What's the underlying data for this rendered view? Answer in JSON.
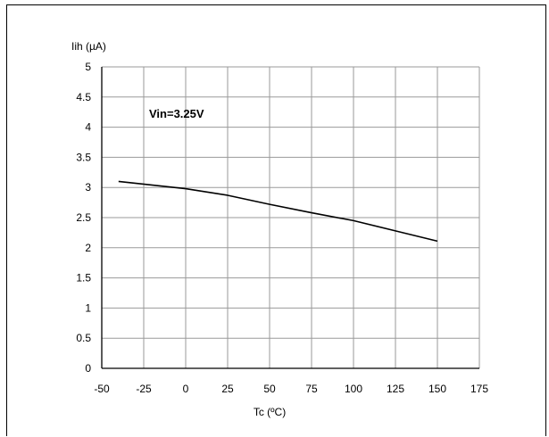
{
  "chart_data": {
    "type": "line",
    "ylabel": "Iih (µA)",
    "xlabel": "Tc (ºC)",
    "annotation": "Vin=3.25V",
    "xlim": [
      -50,
      175
    ],
    "ylim": [
      0,
      5
    ],
    "x_ticks": [
      "-50",
      "-25",
      "0",
      "25",
      "50",
      "75",
      "100",
      "125",
      "150",
      "175"
    ],
    "y_ticks": [
      "0",
      "0.5",
      "1",
      "1.5",
      "2",
      "2.5",
      "3",
      "3.5",
      "4",
      "4.5",
      "5"
    ],
    "grid": true,
    "series": [
      {
        "x": [
          -40,
          0,
          25,
          50,
          75,
          100,
          125,
          150
        ],
        "y": [
          3.1,
          2.98,
          2.87,
          2.72,
          2.58,
          2.45,
          2.28,
          2.11
        ]
      }
    ]
  }
}
